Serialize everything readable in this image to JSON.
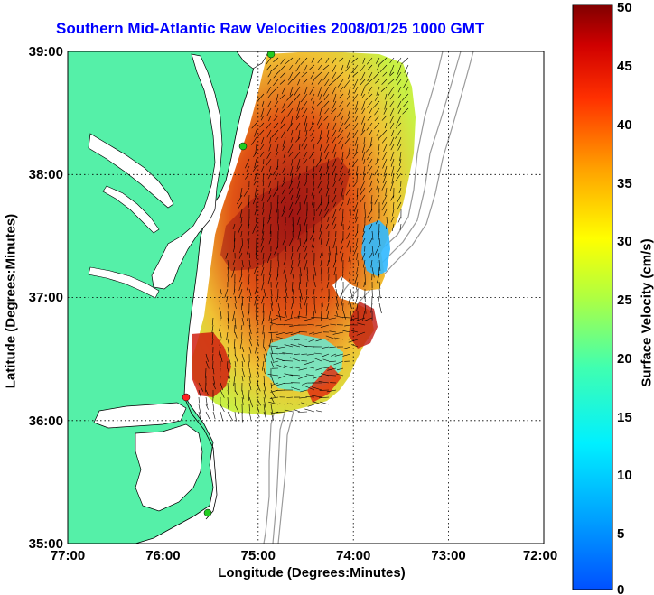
{
  "title": "Southern Mid-Atlantic Raw Velocities 2008/01/25 1000 GMT",
  "axes": {
    "xlabel": "Longitude (Degrees:Minutes)",
    "ylabel": "Latitude (Degrees:Minutes)",
    "x_ticks": [
      "77:00",
      "76:00",
      "75:00",
      "74:00",
      "73:00",
      "72:00"
    ],
    "y_ticks": [
      "39:00",
      "38:00",
      "37:00",
      "36:00",
      "35:00"
    ],
    "grid": "dotted"
  },
  "colorbar": {
    "label": "Surface Velocity (cm/s)",
    "ticks": [
      "50",
      "45",
      "40",
      "35",
      "30",
      "25",
      "20",
      "15",
      "10",
      "5",
      "0"
    ],
    "min": 0,
    "max": 50,
    "colormap": "jet"
  },
  "colors": {
    "title": "#0000ff",
    "land": "#55f0a8",
    "coastline": "#000000",
    "bathymetry": "#9a9a9a",
    "station_marker": "#22cc22",
    "station_marker_highlight": "#ff2222"
  }
}
